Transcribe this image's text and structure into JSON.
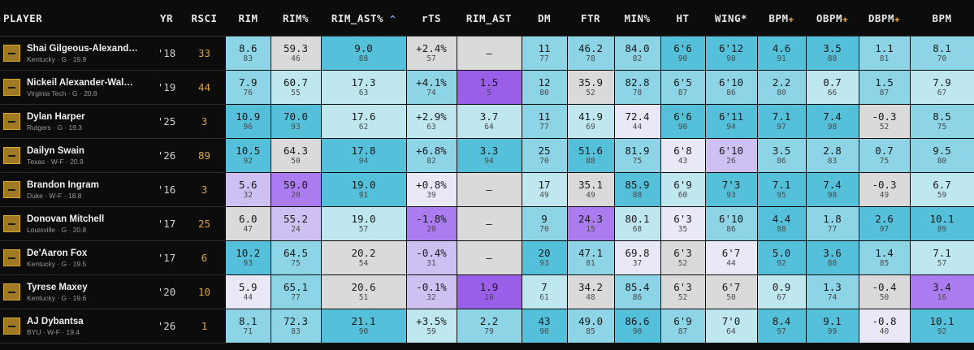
{
  "colors": {
    "c0": "#54c0da",
    "c1": "#8cd4e6",
    "c2": "#bfe7ef",
    "c3": "#dadada",
    "c4": "#e8e8f6",
    "c5": "#cfc0f2",
    "c6": "#ab7cf0",
    "c7": "#9a5fe8"
  },
  "headers": [
    "PLAYER",
    "YR",
    "RSCI",
    "RIM",
    "RIM%",
    "RIM_AST%",
    "rTS",
    "RIM_AST",
    "DM",
    "FTR",
    "MIN%",
    "HT",
    "WING*",
    "BPM",
    "OBPM",
    "DBPM",
    "BPM"
  ],
  "sort_indicator": "^",
  "plus_columns": [
    13,
    14,
    15
  ],
  "rows": [
    {
      "name": "Shai Gilgeous-Alexand…",
      "sub": "Kentucky · G · 19.9",
      "yr": "'18",
      "rsci": "33",
      "stats": [
        [
          "8.6",
          "83",
          "c1"
        ],
        [
          "59.3",
          "46",
          "c3"
        ],
        [
          "9.0",
          "88",
          "c0"
        ],
        [
          "+2.4%",
          "57",
          "c3"
        ],
        [
          "–",
          "",
          "c3"
        ],
        [
          "11",
          "77",
          "c1"
        ],
        [
          "46.2",
          "78",
          "c1"
        ],
        [
          "84.0",
          "82",
          "c1"
        ],
        [
          "6'6",
          "90",
          "c0"
        ],
        [
          "6'12",
          "98",
          "c0"
        ],
        [
          "4.6",
          "91",
          "c0"
        ],
        [
          "3.5",
          "88",
          "c0"
        ],
        [
          "1.1",
          "81",
          "c1"
        ],
        [
          "8.1",
          "70",
          "c1"
        ]
      ]
    },
    {
      "name": "Nickeil Alexander-Wal…",
      "sub": "Virginia Tech · G · 20.8",
      "yr": "'19",
      "rsci": "44",
      "stats": [
        [
          "7.9",
          "76",
          "c1"
        ],
        [
          "60.7",
          "55",
          "c2"
        ],
        [
          "17.3",
          "63",
          "c2"
        ],
        [
          "+4.1%",
          "74",
          "c1"
        ],
        [
          "1.5",
          "5",
          "c7"
        ],
        [
          "12",
          "80",
          "c1"
        ],
        [
          "35.9",
          "52",
          "c3"
        ],
        [
          "82.8",
          "78",
          "c1"
        ],
        [
          "6'5",
          "87",
          "c1"
        ],
        [
          "6'10",
          "86",
          "c1"
        ],
        [
          "2.2",
          "80",
          "c1"
        ],
        [
          "0.7",
          "66",
          "c2"
        ],
        [
          "1.5",
          "87",
          "c1"
        ],
        [
          "7.9",
          "67",
          "c2"
        ]
      ]
    },
    {
      "name": "Dylan Harper",
      "sub": "Rutgers · G · 19.3",
      "yr": "'25",
      "rsci": "3",
      "stats": [
        [
          "10.9",
          "96",
          "c0"
        ],
        [
          "70.0",
          "93",
          "c0"
        ],
        [
          "17.6",
          "62",
          "c2"
        ],
        [
          "+2.9%",
          "63",
          "c2"
        ],
        [
          "3.7",
          "64",
          "c2"
        ],
        [
          "11",
          "77",
          "c1"
        ],
        [
          "41.9",
          "69",
          "c2"
        ],
        [
          "72.4",
          "44",
          "c4"
        ],
        [
          "6'6",
          "90",
          "c0"
        ],
        [
          "6'11",
          "94",
          "c0"
        ],
        [
          "7.1",
          "97",
          "c0"
        ],
        [
          "7.4",
          "98",
          "c0"
        ],
        [
          "-0.3",
          "52",
          "c3"
        ],
        [
          "8.5",
          "75",
          "c1"
        ]
      ]
    },
    {
      "name": "Dailyn Swain",
      "sub": "Texas · W-F · 20.9",
      "yr": "'26",
      "rsci": "89",
      "stats": [
        [
          "10.5",
          "92",
          "c0"
        ],
        [
          "64.3",
          "50",
          "c3"
        ],
        [
          "17.8",
          "94",
          "c0"
        ],
        [
          "+6.8%",
          "82",
          "c1"
        ],
        [
          "3.3",
          "94",
          "c0"
        ],
        [
          "25",
          "70",
          "c1"
        ],
        [
          "51.6",
          "88",
          "c0"
        ],
        [
          "81.9",
          "75",
          "c1"
        ],
        [
          "6'8",
          "43",
          "c4"
        ],
        [
          "6'10",
          "26",
          "c5"
        ],
        [
          "3.5",
          "86",
          "c1"
        ],
        [
          "2.8",
          "83",
          "c1"
        ],
        [
          "0.7",
          "75",
          "c1"
        ],
        [
          "9.5",
          "80",
          "c1"
        ]
      ]
    },
    {
      "name": "Brandon Ingram",
      "sub": "Duke · W-F · 18.8",
      "yr": "'16",
      "rsci": "3",
      "stats": [
        [
          "5.6",
          "32",
          "c5"
        ],
        [
          "59.0",
          "20",
          "c6"
        ],
        [
          "19.0",
          "91",
          "c0"
        ],
        [
          "+0.8%",
          "39",
          "c4"
        ],
        [
          "–",
          "",
          "c3"
        ],
        [
          "17",
          "49",
          "c2"
        ],
        [
          "35.1",
          "49",
          "c3"
        ],
        [
          "85.9",
          "88",
          "c0"
        ],
        [
          "6'9",
          "60",
          "c2"
        ],
        [
          "7'3",
          "93",
          "c0"
        ],
        [
          "7.1",
          "95",
          "c0"
        ],
        [
          "7.4",
          "98",
          "c0"
        ],
        [
          "-0.3",
          "49",
          "c3"
        ],
        [
          "6.7",
          "59",
          "c2"
        ]
      ]
    },
    {
      "name": "Donovan Mitchell",
      "sub": "Louisville · G · 20.8",
      "yr": "'17",
      "rsci": "25",
      "stats": [
        [
          "6.0",
          "47",
          "c3"
        ],
        [
          "55.2",
          "24",
          "c5"
        ],
        [
          "19.0",
          "57",
          "c2"
        ],
        [
          "-1.8%",
          "20",
          "c6"
        ],
        [
          "–",
          "",
          "c3"
        ],
        [
          "9",
          "70",
          "c1"
        ],
        [
          "24.3",
          "15",
          "c6"
        ],
        [
          "80.1",
          "68",
          "c2"
        ],
        [
          "6'3",
          "35",
          "c4"
        ],
        [
          "6'10",
          "86",
          "c1"
        ],
        [
          "4.4",
          "88",
          "c0"
        ],
        [
          "1.8",
          "77",
          "c1"
        ],
        [
          "2.6",
          "97",
          "c0"
        ],
        [
          "10.1",
          "89",
          "c0"
        ]
      ]
    },
    {
      "name": "De'Aaron Fox",
      "sub": "Kentucky · G · 19.5",
      "yr": "'17",
      "rsci": "6",
      "stats": [
        [
          "10.2",
          "93",
          "c0"
        ],
        [
          "64.5",
          "75",
          "c1"
        ],
        [
          "20.2",
          "54",
          "c3"
        ],
        [
          "-0.4%",
          "31",
          "c5"
        ],
        [
          "–",
          "",
          "c3"
        ],
        [
          "20",
          "93",
          "c0"
        ],
        [
          "47.1",
          "81",
          "c1"
        ],
        [
          "69.8",
          "37",
          "c4"
        ],
        [
          "6'3",
          "52",
          "c3"
        ],
        [
          "6'7",
          "44",
          "c4"
        ],
        [
          "5.0",
          "92",
          "c0"
        ],
        [
          "3.6",
          "88",
          "c0"
        ],
        [
          "1.4",
          "85",
          "c1"
        ],
        [
          "7.1",
          "57",
          "c2"
        ]
      ]
    },
    {
      "name": "Tyrese Maxey",
      "sub": "Kentucky · G · 19.6",
      "yr": "'20",
      "rsci": "10",
      "stats": [
        [
          "5.9",
          "44",
          "c4"
        ],
        [
          "65.1",
          "77",
          "c1"
        ],
        [
          "20.6",
          "51",
          "c3"
        ],
        [
          "-0.1%",
          "32",
          "c5"
        ],
        [
          "1.9",
          "10",
          "c7"
        ],
        [
          "7",
          "61",
          "c2"
        ],
        [
          "34.2",
          "48",
          "c3"
        ],
        [
          "85.4",
          "86",
          "c1"
        ],
        [
          "6'3",
          "52",
          "c3"
        ],
        [
          "6'7",
          "50",
          "c3"
        ],
        [
          "0.9",
          "67",
          "c2"
        ],
        [
          "1.3",
          "74",
          "c1"
        ],
        [
          "-0.4",
          "50",
          "c3"
        ],
        [
          "3.4",
          "16",
          "c6"
        ]
      ]
    },
    {
      "name": "AJ Dybantsa",
      "sub": "BYU · W-F · 19.4",
      "yr": "'26",
      "rsci": "1",
      "stats": [
        [
          "8.1",
          "71",
          "c1"
        ],
        [
          "72.3",
          "83",
          "c1"
        ],
        [
          "21.1",
          "90",
          "c0"
        ],
        [
          "+3.5%",
          "59",
          "c2"
        ],
        [
          "2.2",
          "79",
          "c1"
        ],
        [
          "43",
          "90",
          "c0"
        ],
        [
          "49.0",
          "85",
          "c1"
        ],
        [
          "86.6",
          "90",
          "c0"
        ],
        [
          "6'9",
          "87",
          "c1"
        ],
        [
          "7'0",
          "64",
          "c2"
        ],
        [
          "8.4",
          "97",
          "c0"
        ],
        [
          "9.1",
          "99",
          "c0"
        ],
        [
          "-0.8",
          "40",
          "c4"
        ],
        [
          "10.1",
          "92",
          "c0"
        ]
      ]
    }
  ]
}
